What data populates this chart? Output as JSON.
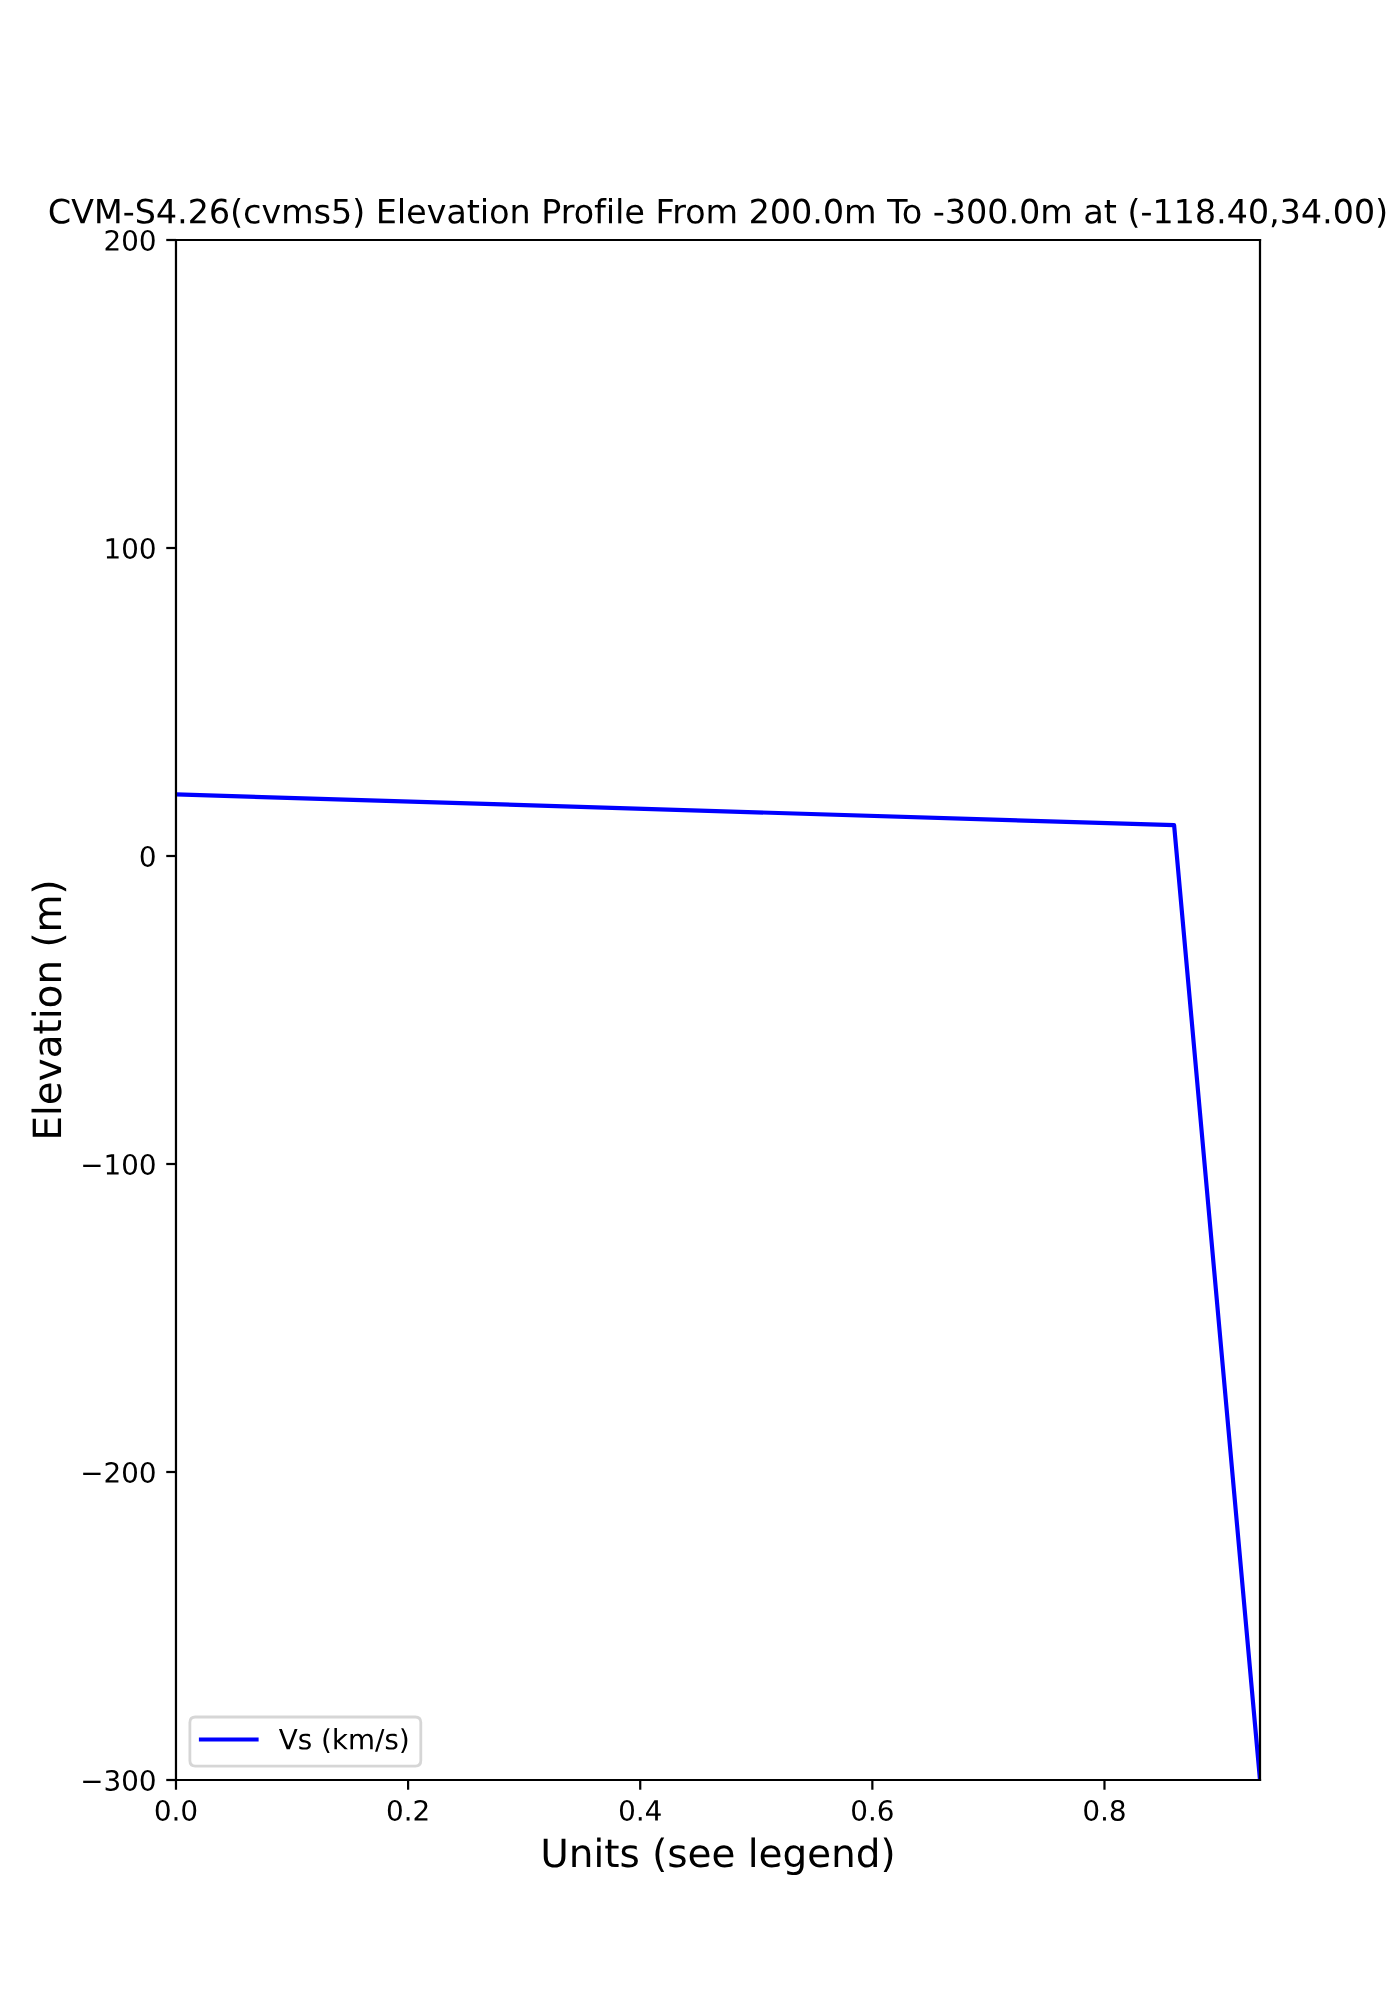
{
  "chart_data": {
    "type": "line",
    "title": "CVM-S4.26(cvms5) Elevation Profile From 200.0m To -300.0m at (-118.40,34.00)",
    "xlabel": "Units (see legend)",
    "ylabel": "Elevation (m)",
    "series": [
      {
        "name": "Vs (km/s)",
        "color": "#0000ff",
        "x": [
          0,
          0.86,
          0.934
        ],
        "values": [
          20,
          10,
          -300
        ]
      }
    ],
    "xlim": [
      0,
      0.934
    ],
    "xticks": [
      {
        "value": 0,
        "label": "0.0"
      },
      0.2,
      0.4,
      0.6,
      0.8
    ],
    "ylim": [
      -300,
      200
    ],
    "yticks": [
      {
        "value": -300,
        "label": "−300"
      },
      {
        "value": -200,
        "label": "−200"
      },
      {
        "value": -100,
        "label": "−100"
      },
      0,
      100,
      200
    ],
    "legend": "bottom left",
    "grid": false
  }
}
